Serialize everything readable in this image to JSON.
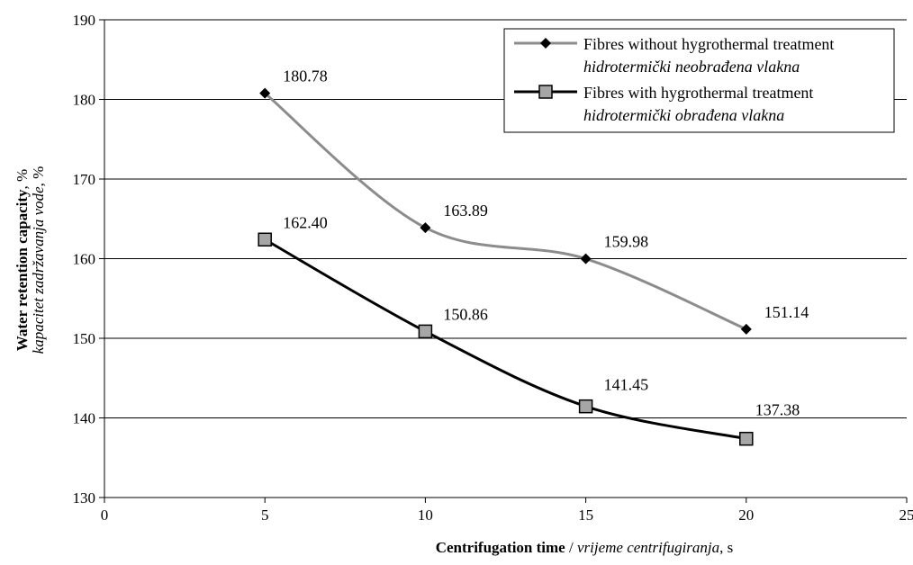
{
  "chart_data": {
    "type": "line",
    "x": [
      5,
      10,
      15,
      20
    ],
    "series": [
      {
        "name": "Fibres without hygrothermal treatment",
        "name_alt": "hidrotermički neobrađena vlakna",
        "values": [
          180.78,
          163.89,
          159.98,
          151.14
        ],
        "labels": [
          "180.78",
          "163.89",
          "159.98",
          "151.14"
        ],
        "color": "#8c8c8c",
        "marker": "diamond",
        "marker_color": "#000000"
      },
      {
        "name": "Fibres with hygrothermal treatment",
        "name_alt": "hidrotermički obrađena vlakna",
        "values": [
          162.4,
          150.86,
          141.45,
          137.38
        ],
        "labels": [
          "162.40",
          "150.86",
          "141.45",
          "137.38"
        ],
        "color": "#000000",
        "marker": "square",
        "marker_color": "#a6a6a6"
      }
    ],
    "xlim": [
      0,
      25
    ],
    "ylim": [
      130,
      190
    ],
    "xticks": [
      "0",
      "5",
      "10",
      "15",
      "20",
      "25"
    ],
    "yticks": [
      "130",
      "140",
      "150",
      "160",
      "170",
      "180",
      "190"
    ],
    "xlabel": {
      "bold": "Centrifugation time",
      "sep": " / ",
      "italic": "vrijeme centrifugiranja",
      "unit": ", s"
    },
    "ylabel": {
      "bold": "Water retention capacity",
      "unit1": ", %",
      "italic": "kapacitet zadržavanja vode",
      "unit2": ", %"
    },
    "grid": true,
    "legend_position": "top-right"
  }
}
